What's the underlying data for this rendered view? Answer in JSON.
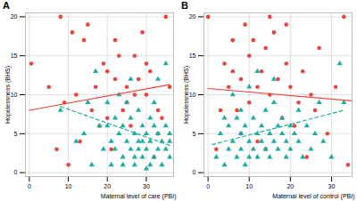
{
  "chart_data": [
    {
      "type": "scatter",
      "title": "A",
      "x_label": "Maternal level of care (PBI)",
      "y_label": "Hopelessness (BHS)",
      "xlim": [
        -1,
        37
      ],
      "xticks": [
        0,
        10,
        20,
        30
      ],
      "ylim": [
        -0.5,
        20.5
      ],
      "yticks": [
        0,
        5,
        10,
        15,
        20
      ],
      "grid": true,
      "series": [
        {
          "type": "scatter",
          "color": "#e8453c",
          "marker": "circle",
          "x": [
            0.5,
            5,
            8,
            10,
            11,
            12,
            14,
            15,
            17,
            18,
            19,
            20,
            21,
            22,
            23,
            24,
            25,
            26,
            27,
            27,
            28,
            29,
            30,
            31,
            32,
            33,
            34,
            35,
            36,
            7,
            13,
            16,
            22,
            25,
            30,
            33,
            20,
            9
          ],
          "values": [
            14,
            11,
            20,
            1,
            18,
            10,
            17,
            19,
            11,
            6,
            14,
            13,
            3,
            12,
            15,
            8,
            11,
            6,
            15,
            10,
            12,
            18,
            14,
            13,
            2,
            8,
            7,
            20,
            11,
            3,
            4,
            8,
            17,
            9,
            10,
            5,
            7,
            9
          ]
        },
        {
          "type": "scatter",
          "color": "#1fada3",
          "marker": "triangle",
          "x": [
            15,
            17,
            18,
            8,
            12,
            14,
            16,
            20,
            21,
            22,
            22,
            23,
            24,
            24,
            25,
            25,
            26,
            26,
            27,
            27,
            28,
            28,
            29,
            29,
            30,
            30,
            31,
            31,
            32,
            32,
            33,
            33,
            34,
            34,
            35,
            35,
            36,
            36,
            23,
            19,
            20,
            26,
            30,
            31,
            32,
            33,
            35,
            27,
            28,
            21,
            24,
            29,
            36
          ],
          "values": [
            9,
            13,
            6,
            8,
            4,
            5,
            1,
            6,
            4,
            7,
            3,
            5,
            2,
            6,
            4,
            9,
            3,
            7,
            5,
            1,
            4,
            8,
            2,
            6,
            3,
            5,
            4,
            7,
            2,
            6,
            3,
            5,
            1,
            4,
            3,
            6,
            2,
            5,
            10,
            3,
            9,
            12,
            0.5,
            1,
            9,
            12,
            14,
            2,
            3,
            1,
            1,
            4,
            4
          ]
        },
        {
          "type": "line",
          "color": "#e8453c",
          "line_style": "solid",
          "x": [
            0,
            36
          ],
          "values": [
            8,
            11.3
          ]
        },
        {
          "type": "line",
          "color": "#1fada3",
          "line_style": "dashed",
          "x": [
            8,
            36
          ],
          "values": [
            8.5,
            3.5
          ]
        }
      ]
    },
    {
      "type": "scatter",
      "title": "B",
      "x_label": "Maternal level of control (PBI)",
      "y_label": "Hopelessness (BHS)",
      "xlim": [
        -1,
        35
      ],
      "xticks": [
        0,
        10,
        20,
        30
      ],
      "ylim": [
        -0.5,
        20.5
      ],
      "yticks": [
        0,
        5,
        10,
        15,
        20
      ],
      "grid": true,
      "series": [
        {
          "type": "scatter",
          "color": "#e8453c",
          "marker": "circle",
          "x": [
            0,
            2,
            4,
            5,
            6,
            7,
            8,
            9,
            10,
            10,
            11,
            12,
            13,
            14,
            15,
            15,
            16,
            17,
            18,
            19,
            20,
            21,
            22,
            23,
            24,
            25,
            26,
            27,
            29,
            31,
            34,
            33,
            12,
            8,
            3,
            19,
            14,
            6
          ],
          "values": [
            20,
            3,
            14,
            11,
            17,
            8,
            12,
            19,
            15,
            9,
            17,
            4,
            13,
            16,
            20,
            10,
            18,
            12,
            7,
            14,
            11,
            6,
            9,
            13,
            2,
            10,
            8,
            16,
            5,
            11,
            1,
            20,
            11,
            5,
            8,
            19,
            3,
            13
          ]
        },
        {
          "type": "scatter",
          "color": "#1fada3",
          "marker": "triangle",
          "x": [
            2,
            3,
            4,
            5,
            5,
            6,
            7,
            7,
            8,
            8,
            9,
            9,
            10,
            10,
            11,
            11,
            12,
            12,
            13,
            13,
            14,
            14,
            15,
            15,
            16,
            16,
            17,
            17,
            18,
            18,
            19,
            19,
            20,
            20,
            21,
            22,
            22,
            23,
            24,
            25,
            26,
            27,
            28,
            30,
            32,
            33,
            10,
            12,
            16,
            8,
            6,
            4
          ],
          "values": [
            2,
            5,
            1,
            6,
            3,
            4,
            2,
            7,
            3,
            5,
            1,
            6,
            4,
            2,
            3,
            7,
            5,
            2,
            4,
            6,
            3,
            8,
            5,
            2,
            4,
            9,
            6,
            3,
            5,
            7,
            2,
            4,
            6,
            3,
            5,
            8,
            4,
            2,
            6,
            3,
            5,
            9,
            4,
            2,
            14,
            9,
            11,
            13,
            12,
            8,
            10,
            7
          ]
        },
        {
          "type": "line",
          "color": "#e8453c",
          "line_style": "solid",
          "x": [
            0,
            35
          ],
          "values": [
            10.8,
            9.2
          ]
        },
        {
          "type": "line",
          "color": "#1fada3",
          "line_style": "dashed",
          "x": [
            1,
            33
          ],
          "values": [
            3.6,
            8
          ]
        }
      ]
    }
  ]
}
